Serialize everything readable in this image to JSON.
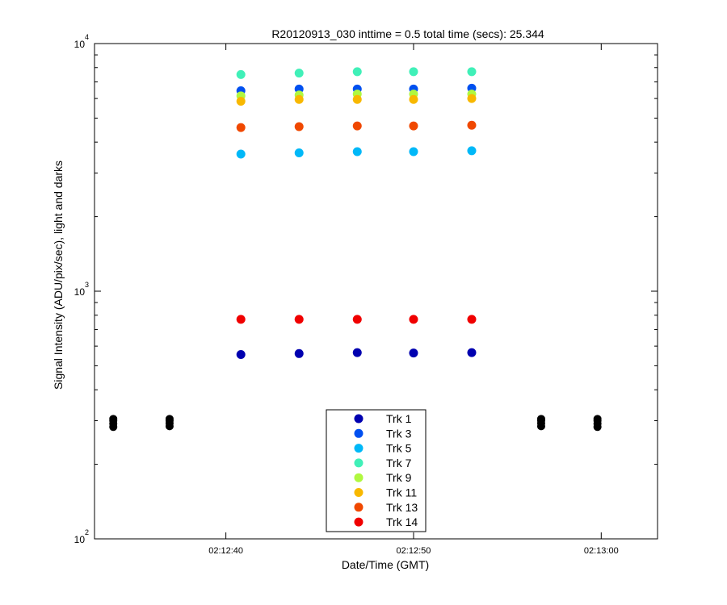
{
  "chart_data": {
    "type": "scatter",
    "title": "R20120913_030 inttime = 0.5 total time (secs): 25.344",
    "xlabel": "Date/Time (GMT)",
    "ylabel": "Signal Intensity (ADU/pix/sec), light and darks",
    "y_scale": "log",
    "ylim": [
      100,
      10000
    ],
    "xlim": [
      "02:12:33",
      "02:13:03"
    ],
    "x_ticks": [
      "02:12:40",
      "02:12:50",
      "02:13:00"
    ],
    "y_ticks": [
      {
        "base": "10",
        "exp": "2",
        "value": 100
      },
      {
        "base": "10",
        "exp": "3",
        "value": 1000
      },
      {
        "base": "10",
        "exp": "4",
        "value": 10000
      }
    ],
    "grid": false,
    "legend_position": "bottom-center",
    "x": [
      "02:12:40.8",
      "02:12:43.9",
      "02:12:47.0",
      "02:12:50.0",
      "02:12:53.1"
    ],
    "series": [
      {
        "name": "Trk 1",
        "color": "#0000b0",
        "values": [
          555,
          560,
          565,
          563,
          565
        ]
      },
      {
        "name": "Trk 3",
        "color": "#0050f0",
        "values": [
          6450,
          6550,
          6550,
          6550,
          6600
        ]
      },
      {
        "name": "Trk 5",
        "color": "#00b8f8",
        "values": [
          3580,
          3620,
          3660,
          3660,
          3690
        ]
      },
      {
        "name": "Trk 7",
        "color": "#40f0b8",
        "values": [
          7500,
          7600,
          7700,
          7700,
          7700
        ]
      },
      {
        "name": "Trk 9",
        "color": "#b0f840",
        "values": [
          6150,
          6200,
          6250,
          6250,
          6250
        ]
      },
      {
        "name": "Trk 11",
        "color": "#f8b800",
        "values": [
          5850,
          5950,
          5950,
          5950,
          6000
        ]
      },
      {
        "name": "Trk 13",
        "color": "#f04800",
        "values": [
          4580,
          4620,
          4650,
          4650,
          4680
        ]
      },
      {
        "name": "Trk 14",
        "color": "#f00000",
        "values": [
          770,
          770,
          770,
          770,
          770
        ]
      }
    ],
    "dark_series": {
      "color": "#000000",
      "x": [
        "02:12:34.0",
        "02:12:37.0",
        "02:12:56.8",
        "02:12:59.8"
      ],
      "values": [
        [
          283,
          292,
          300,
          305
        ],
        [
          285,
          293,
          300,
          305
        ],
        [
          285,
          293,
          300,
          305
        ],
        [
          283,
          292,
          300,
          305
        ]
      ]
    }
  }
}
